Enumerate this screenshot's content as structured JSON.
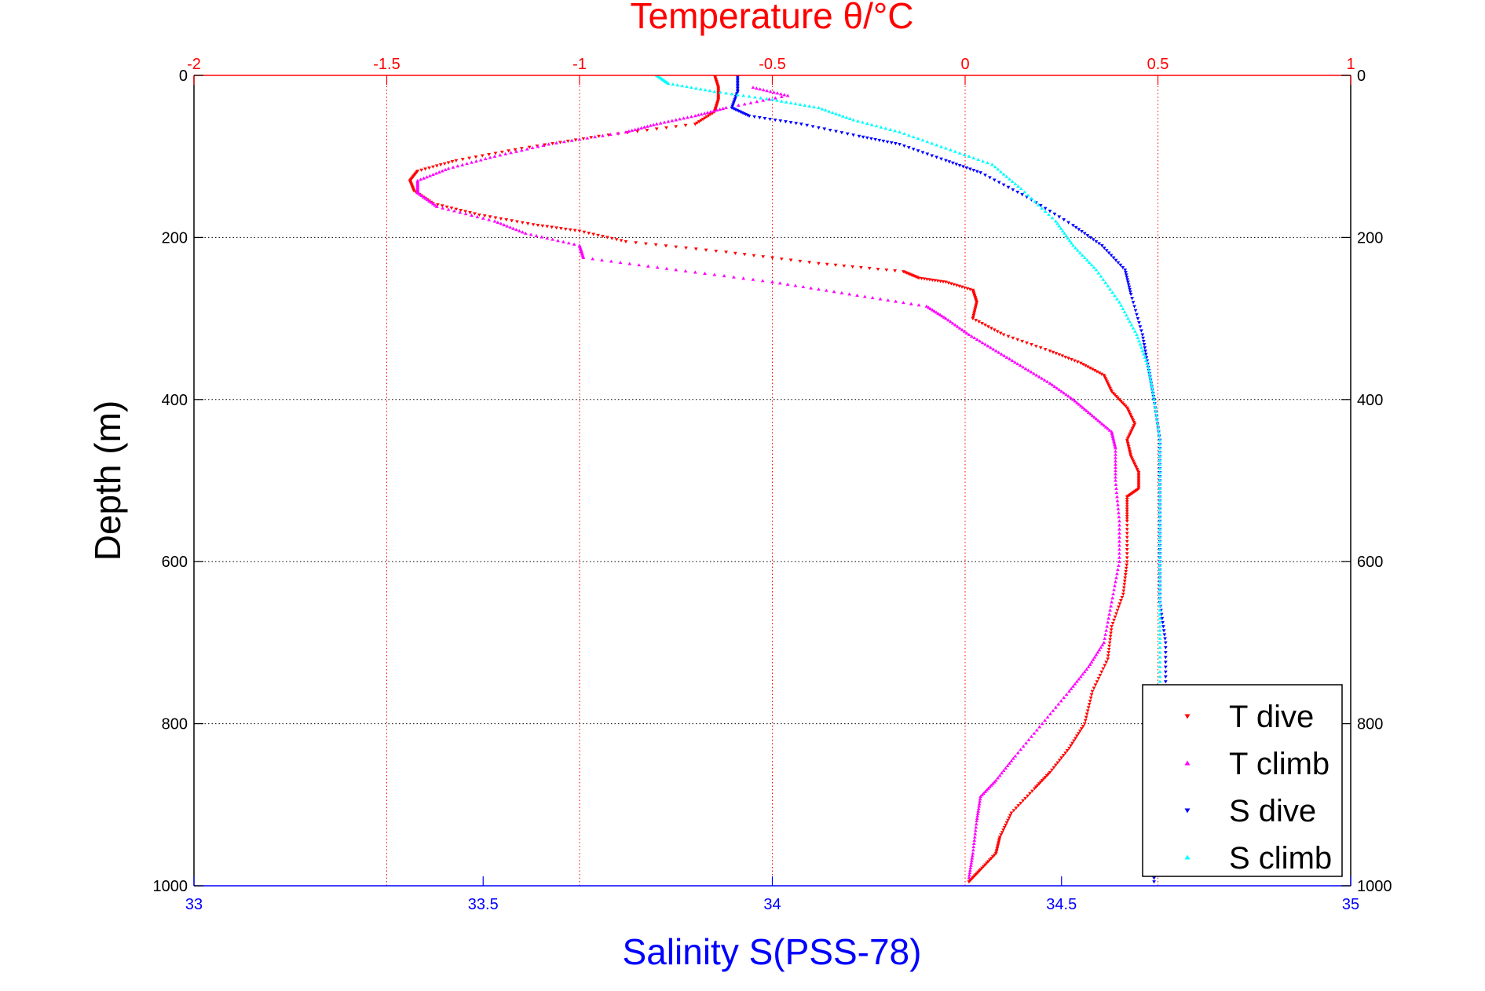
{
  "chart_data": {
    "type": "scatter",
    "top_axis": {
      "title": "Temperature θ/°C",
      "range": [
        -2,
        1
      ],
      "ticks": [
        -2,
        -1.5,
        -1,
        -0.5,
        0,
        0.5,
        1
      ],
      "tick_labels": [
        "-2",
        "-1.5",
        "-1",
        "-0.5",
        "0",
        "0.5",
        "1"
      ],
      "color": "#ff0000",
      "grid": true
    },
    "bottom_axis": {
      "title": "Salinity S(PSS-78)",
      "range": [
        33,
        35
      ],
      "ticks": [
        33,
        33.5,
        34,
        34.5,
        35
      ],
      "tick_labels": [
        "33",
        "33.5",
        "34",
        "34.5",
        "35"
      ],
      "color": "#0000ff",
      "grid": false
    },
    "y_axis": {
      "title": "Depth (m)",
      "range": [
        0,
        1000
      ],
      "reversed": true,
      "ticks": [
        0,
        200,
        400,
        600,
        800,
        1000
      ],
      "tick_labels": [
        "0",
        "200",
        "400",
        "600",
        "800",
        "1000"
      ],
      "color": "#000000",
      "grid": true
    },
    "legend": {
      "position": "bottom-right"
    },
    "series": [
      {
        "name": "T dive",
        "axis": "temperature",
        "marker": "triangle-down",
        "color": "#ff0000",
        "points": [
          [
            -0.65,
            0
          ],
          [
            -0.64,
            15
          ],
          [
            -0.64,
            30
          ],
          [
            -0.65,
            45
          ],
          [
            -0.7,
            60
          ],
          [
            -0.95,
            75
          ],
          [
            -1.15,
            90
          ],
          [
            -1.32,
            105
          ],
          [
            -1.42,
            118
          ],
          [
            -1.44,
            130
          ],
          [
            -1.43,
            142
          ],
          [
            -1.38,
            158
          ],
          [
            -1.26,
            172
          ],
          [
            -1.12,
            184
          ],
          [
            -1.0,
            192
          ],
          [
            -0.88,
            205
          ],
          [
            -0.62,
            218
          ],
          [
            -0.38,
            232
          ],
          [
            -0.16,
            242
          ],
          [
            -0.12,
            250
          ],
          [
            -0.05,
            255
          ],
          [
            0.02,
            265
          ],
          [
            0.03,
            280
          ],
          [
            0.02,
            300
          ],
          [
            0.1,
            320
          ],
          [
            0.22,
            340
          ],
          [
            0.3,
            355
          ],
          [
            0.36,
            370
          ],
          [
            0.38,
            390
          ],
          [
            0.42,
            410
          ],
          [
            0.44,
            430
          ],
          [
            0.42,
            450
          ],
          [
            0.43,
            470
          ],
          [
            0.45,
            490
          ],
          [
            0.45,
            510
          ],
          [
            0.42,
            520
          ],
          [
            0.42,
            550
          ],
          [
            0.42,
            600
          ],
          [
            0.41,
            640
          ],
          [
            0.38,
            680
          ],
          [
            0.37,
            720
          ],
          [
            0.33,
            760
          ],
          [
            0.31,
            800
          ],
          [
            0.27,
            830
          ],
          [
            0.22,
            860
          ],
          [
            0.18,
            880
          ],
          [
            0.12,
            910
          ],
          [
            0.09,
            940
          ],
          [
            0.08,
            960
          ],
          [
            0.04,
            980
          ],
          [
            0.01,
            995
          ]
        ]
      },
      {
        "name": "T climb",
        "axis": "temperature",
        "marker": "triangle-up",
        "color": "#ff00ff",
        "points": [
          [
            -0.55,
            15
          ],
          [
            -0.46,
            25
          ],
          [
            -0.62,
            40
          ],
          [
            -0.7,
            50
          ],
          [
            -0.8,
            60
          ],
          [
            -0.88,
            70
          ],
          [
            -1.08,
            85
          ],
          [
            -1.22,
            100
          ],
          [
            -1.34,
            115
          ],
          [
            -1.42,
            130
          ],
          [
            -1.42,
            145
          ],
          [
            -1.37,
            162
          ],
          [
            -1.22,
            180
          ],
          [
            -1.14,
            195
          ],
          [
            -1.0,
            210
          ],
          [
            -0.99,
            225
          ],
          [
            -0.75,
            240
          ],
          [
            -0.5,
            255
          ],
          [
            -0.3,
            270
          ],
          [
            -0.1,
            285
          ],
          [
            -0.05,
            300
          ],
          [
            0.01,
            320
          ],
          [
            0.08,
            340
          ],
          [
            0.15,
            360
          ],
          [
            0.22,
            380
          ],
          [
            0.28,
            400
          ],
          [
            0.33,
            420
          ],
          [
            0.38,
            440
          ],
          [
            0.39,
            460
          ],
          [
            0.39,
            500
          ],
          [
            0.4,
            550
          ],
          [
            0.4,
            600
          ],
          [
            0.38,
            650
          ],
          [
            0.36,
            700
          ],
          [
            0.32,
            730
          ],
          [
            0.27,
            760
          ],
          [
            0.2,
            800
          ],
          [
            0.13,
            840
          ],
          [
            0.08,
            870
          ],
          [
            0.04,
            890
          ],
          [
            0.03,
            920
          ],
          [
            0.02,
            960
          ],
          [
            0.01,
            990
          ]
        ]
      },
      {
        "name": "S dive",
        "axis": "salinity",
        "marker": "triangle-down",
        "color": "#0000ff",
        "points": [
          [
            33.94,
            0
          ],
          [
            33.94,
            20
          ],
          [
            33.93,
            40
          ],
          [
            33.96,
            50
          ],
          [
            34.05,
            60
          ],
          [
            34.15,
            75
          ],
          [
            34.22,
            85
          ],
          [
            34.3,
            105
          ],
          [
            34.36,
            120
          ],
          [
            34.44,
            150
          ],
          [
            34.52,
            185
          ],
          [
            34.57,
            210
          ],
          [
            34.61,
            240
          ],
          [
            34.62,
            270
          ],
          [
            34.64,
            320
          ],
          [
            34.65,
            360
          ],
          [
            34.66,
            400
          ],
          [
            34.67,
            450
          ],
          [
            34.67,
            500
          ],
          [
            34.67,
            550
          ],
          [
            34.67,
            600
          ],
          [
            34.67,
            650
          ],
          [
            34.68,
            700
          ],
          [
            34.68,
            760
          ],
          [
            34.67,
            800
          ],
          [
            34.67,
            850
          ],
          [
            34.67,
            900
          ],
          [
            34.66,
            950
          ],
          [
            34.66,
            995
          ]
        ]
      },
      {
        "name": "S climb",
        "axis": "salinity",
        "marker": "triangle-up",
        "color": "#00ffff",
        "points": [
          [
            33.8,
            0
          ],
          [
            33.82,
            10
          ],
          [
            33.9,
            20
          ],
          [
            34.0,
            30
          ],
          [
            34.08,
            40
          ],
          [
            34.14,
            55
          ],
          [
            34.22,
            70
          ],
          [
            34.3,
            90
          ],
          [
            34.38,
            110
          ],
          [
            34.43,
            140
          ],
          [
            34.49,
            180
          ],
          [
            34.52,
            210
          ],
          [
            34.56,
            240
          ],
          [
            34.6,
            280
          ],
          [
            34.63,
            320
          ],
          [
            34.65,
            360
          ],
          [
            34.66,
            400
          ],
          [
            34.67,
            450
          ],
          [
            34.67,
            500
          ],
          [
            34.67,
            550
          ],
          [
            34.67,
            600
          ],
          [
            34.67,
            650
          ],
          [
            34.67,
            700
          ],
          [
            34.67,
            760
          ]
        ]
      }
    ]
  }
}
